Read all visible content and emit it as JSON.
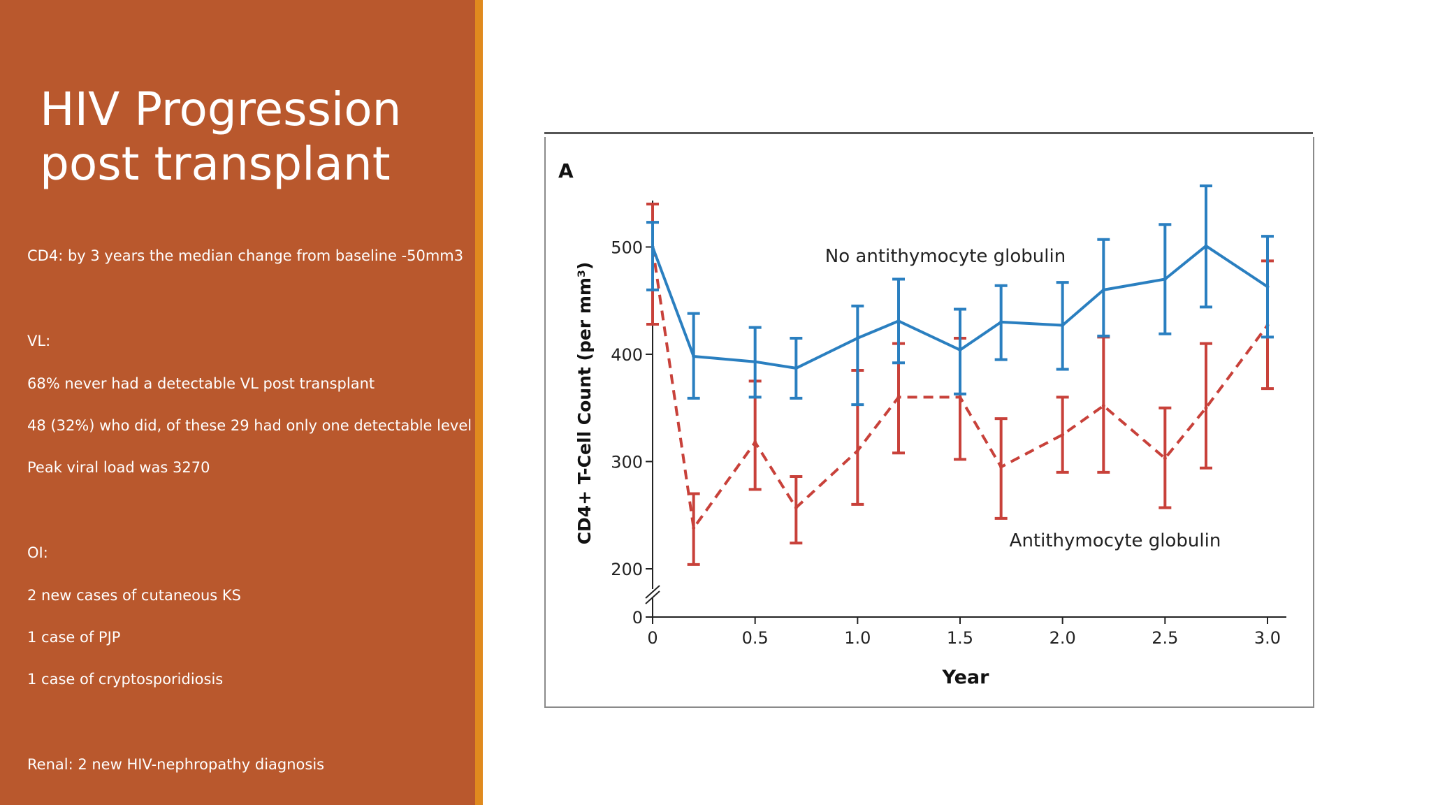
{
  "slide": {
    "title_line1": "HIV Progression",
    "title_line2": "post transplant",
    "bullets": [
      "CD4: by 3 years the median change from baseline -50mm3",
      "VL:",
      "68% never had a detectable VL post transplant",
      "48 (32%) who did, of these 29 had only one detectable level",
      "Peak viral load was 3270",
      "OI:",
      "2 new cases of cutaneous KS",
      "1 case of PJP",
      "1 case of cryptosporidiosis",
      "Renal: 2 new HIV-nephropathy diagnosis"
    ]
  },
  "colors": {
    "panel": "#b9582d",
    "accent": "#e08a1e",
    "blue_series": "#2a7fc0",
    "red_series": "#c8413a"
  },
  "chart_data": {
    "type": "line",
    "panel_label": "A",
    "xlabel": "Year",
    "ylabel": "CD4+ T-Cell Count (per mm³)",
    "x_ticks": [
      0,
      0.5,
      1.0,
      1.5,
      2.0,
      2.5,
      3.0
    ],
    "x_tick_labels": [
      "0",
      "0.5",
      "1.0",
      "1.5",
      "2.0",
      "2.5",
      "3.0"
    ],
    "y_ticks": [
      200,
      300,
      400,
      500
    ],
    "y_tick_labels": [
      "200",
      "300",
      "400",
      "500"
    ],
    "y_zero_label": "0",
    "xlim": [
      0,
      3.0
    ],
    "ylim": [
      200,
      550
    ],
    "axis_break": true,
    "series": [
      {
        "name": "No antithymocyte globulin",
        "style": "solid",
        "x": [
          0,
          0.2,
          0.5,
          0.7,
          1.0,
          1.2,
          1.5,
          1.7,
          2.0,
          2.2,
          2.5,
          2.7,
          3.0
        ],
        "y": [
          500,
          398,
          393,
          387,
          415,
          431,
          404,
          430,
          427,
          460,
          470,
          501,
          463
        ],
        "err_low": [
          460,
          359,
          360,
          359,
          353,
          392,
          363,
          395,
          386,
          417,
          419,
          444,
          416
        ],
        "err_high": [
          523,
          438,
          425,
          415,
          445,
          470,
          442,
          464,
          467,
          507,
          521,
          557,
          510
        ]
      },
      {
        "name": "Antithymocyte globulin",
        "style": "dashed",
        "x": [
          0,
          0.2,
          0.5,
          0.7,
          1.0,
          1.2,
          1.5,
          1.7,
          2.0,
          2.2,
          2.5,
          2.7,
          3.0
        ],
        "y": [
          500,
          238,
          318,
          257,
          310,
          360,
          360,
          295,
          325,
          352,
          303,
          350,
          427
        ],
        "err_low": [
          428,
          204,
          274,
          224,
          260,
          308,
          302,
          247,
          290,
          290,
          257,
          294,
          368
        ],
        "err_high": [
          540,
          270,
          375,
          286,
          385,
          410,
          415,
          340,
          360,
          416,
          350,
          410,
          487
        ]
      }
    ]
  }
}
